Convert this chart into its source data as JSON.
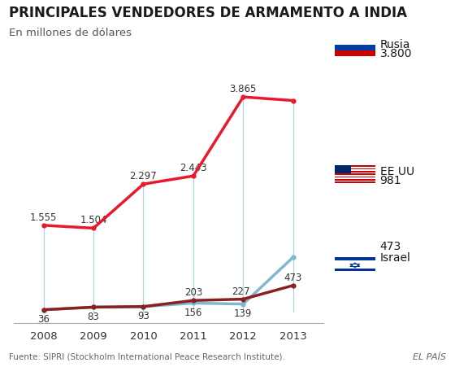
{
  "title": "PRINCIPALES VENDEDORES DE ARMAMENTO A INDIA",
  "subtitle": "En millones de dólares",
  "footer_left": "Fuente: SIPRI (Stockholm International Peace Research Institute).",
  "footer_right": "EL PAÍS",
  "years": [
    2008,
    2009,
    2010,
    2011,
    2012,
    2013
  ],
  "rusia": [
    1555,
    1504,
    2297,
    2443,
    3865,
    3800
  ],
  "eeuu": [
    36,
    83,
    93,
    156,
    139,
    981
  ],
  "israel": [
    36,
    83,
    93,
    203,
    227,
    473
  ],
  "rusia_labels": [
    "1.555",
    "1.504",
    "2.297",
    "2.443",
    "3.865",
    ""
  ],
  "eeuu_labels": [
    "36",
    "83",
    "93",
    "156",
    "139",
    ""
  ],
  "israel_labels": [
    "",
    "",
    "",
    "203",
    "227",
    "473"
  ],
  "color_rusia": "#e8192c",
  "color_eeuu": "#7fb9d0",
  "color_israel": "#8b2020",
  "background": "#ffffff",
  "title_fontsize": 12,
  "subtitle_fontsize": 9.5,
  "label_fontsize": 8.5,
  "legend_name_fontsize": 10,
  "legend_val_fontsize": 10,
  "ylim": [
    -200,
    4300
  ],
  "vertical_line_color": "#a8d0e0",
  "vertical_line_alpha": 0.9
}
